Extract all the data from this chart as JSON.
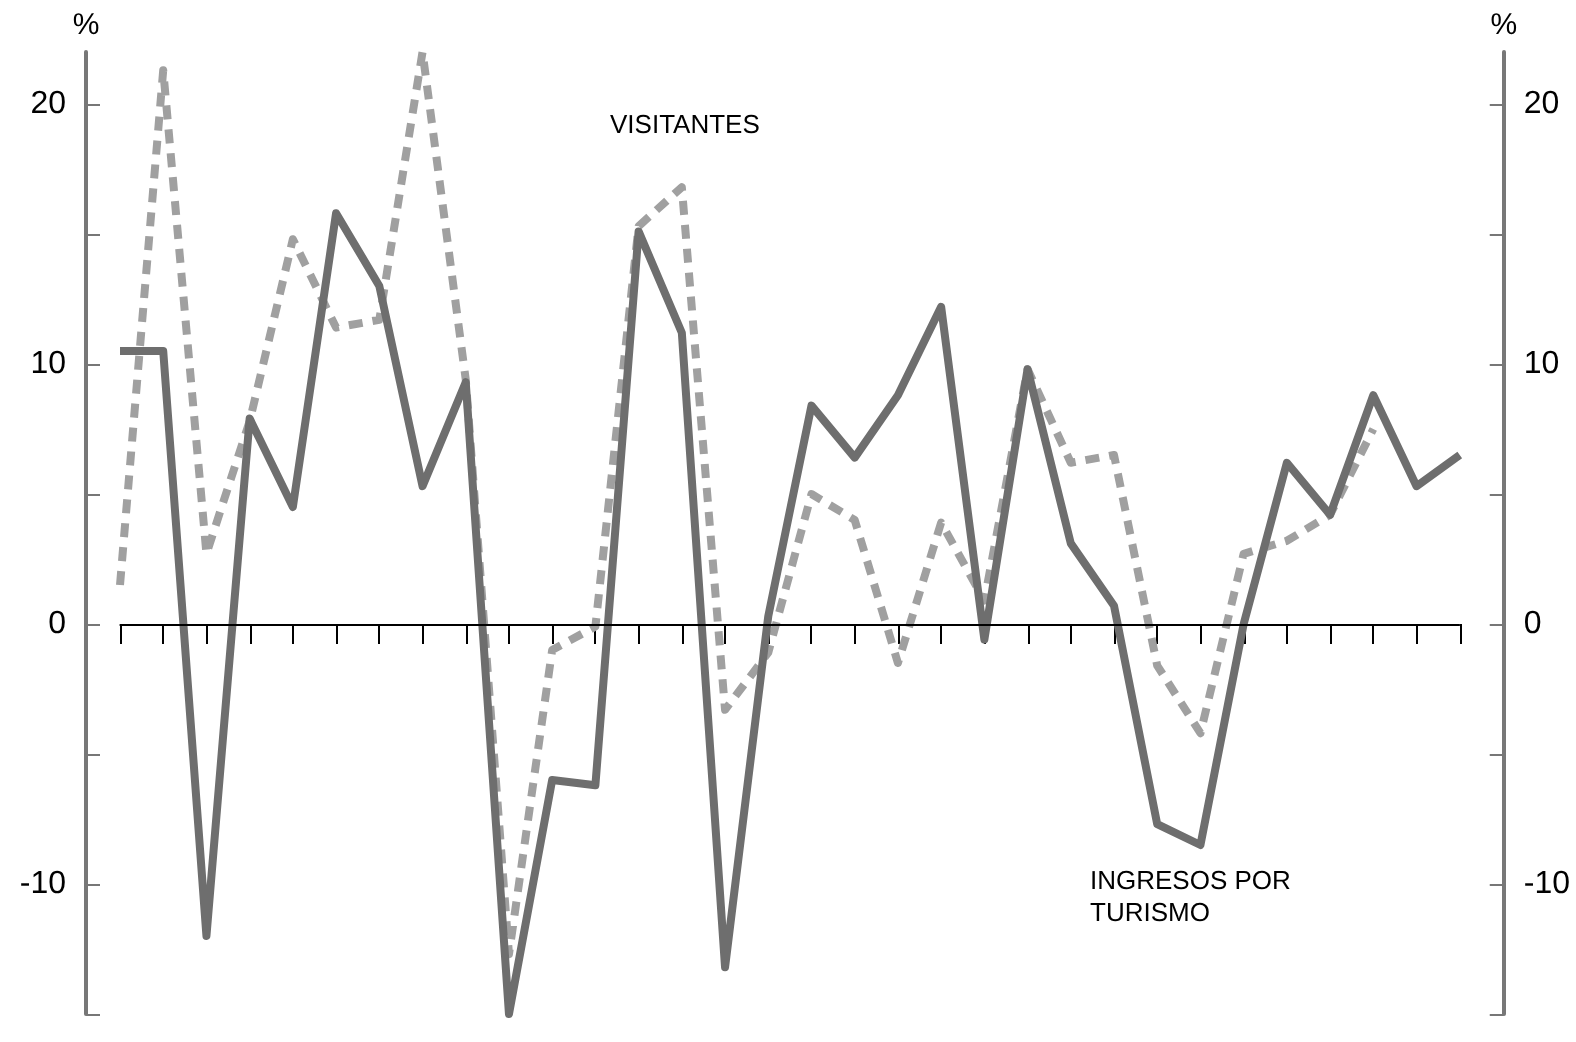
{
  "chart_data": {
    "type": "line",
    "ylabel": "%",
    "y2label": "%",
    "categories": [
      null,
      null,
      null,
      null,
      null,
      null,
      null,
      null,
      null,
      null,
      null,
      null,
      null,
      null,
      null,
      null,
      null,
      null,
      null,
      null,
      null,
      null,
      null,
      null,
      null,
      null,
      null,
      null,
      null,
      null,
      null,
      null
    ],
    "series": [
      {
        "name": "VISITANTES",
        "color": "#a0a0a0",
        "line_style": "dashed",
        "values": [
          1.5,
          21.3,
          2.7,
          7.8,
          14.8,
          11.4,
          11.7,
          22,
          9.4,
          -12.7,
          -1.0,
          -0.1,
          15.3,
          16.8,
          -3.3,
          -1.1,
          5.0,
          4.0,
          -1.5,
          3.9,
          0.9,
          9.8,
          6.2,
          6.5,
          -1.6,
          -4.2,
          2.7,
          3.2,
          4.2,
          7.5,
          null,
          null
        ]
      },
      {
        "name": "INGRESOS POR TURISMO",
        "color": "#6e6e6e",
        "line_style": "solid",
        "values": [
          10.5,
          10.5,
          -12.0,
          7.9,
          4.5,
          15.8,
          13.0,
          5.3,
          9.3,
          -15,
          -6.0,
          -6.2,
          15.1,
          11.2,
          -13.2,
          0.3,
          8.4,
          6.4,
          8.8,
          12.2,
          -0.6,
          9.8,
          3.1,
          0.7,
          -7.7,
          -8.5,
          0,
          6.2,
          4.2,
          8.8,
          5.3,
          6.5
        ]
      }
    ],
    "ylim": [
      -15,
      22
    ],
    "yticks": [
      {
        "value": -15,
        "label": null
      },
      -10,
      {
        "value": -5,
        "label": null
      },
      0,
      {
        "value": 5,
        "label": null
      },
      10,
      {
        "value": 15,
        "label": null
      },
      20
    ],
    "y2lim": [
      -15,
      22
    ],
    "y2ticks": [
      {
        "value": -15,
        "label": null
      },
      -10,
      {
        "value": -5,
        "label": null
      },
      0,
      {
        "value": 5,
        "label": null
      },
      10,
      {
        "value": 15,
        "label": null
      },
      20
    ],
    "ref_lines": [
      {
        "axis": "y",
        "value": 0,
        "color": "#000000"
      }
    ],
    "marker": "none",
    "grid": false,
    "legend": false
  }
}
